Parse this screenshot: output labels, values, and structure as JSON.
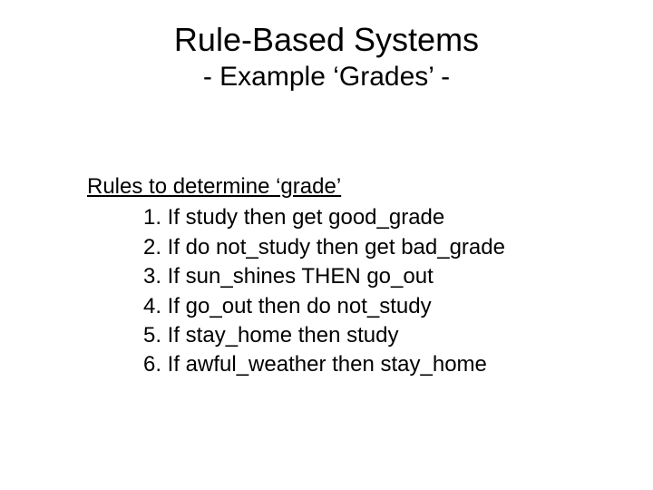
{
  "title": "Rule-Based Systems",
  "subtitle": "- Example ‘Grades’ -",
  "intro": "Rules to determine ‘grade’",
  "rules": [
    {
      "n": "1.",
      "text": "If study then get  good_grade"
    },
    {
      "n": "2.",
      "text": "If do not_study then get bad_grade"
    },
    {
      "n": "3.",
      "text": "If sun_shines  THEN  go_out"
    },
    {
      "n": "4.",
      "text": "If go_out then do not_study"
    },
    {
      "n": "5.",
      "text": "If stay_home  then study"
    },
    {
      "n": "6.",
      "text": "If awful_weather  then stay_home"
    }
  ],
  "colors": {
    "background": "#ffffff",
    "text": "#000000"
  },
  "font": {
    "title_size_pt": 36,
    "subtitle_size_pt": 30,
    "body_size_pt": 24,
    "family": "Arial"
  }
}
